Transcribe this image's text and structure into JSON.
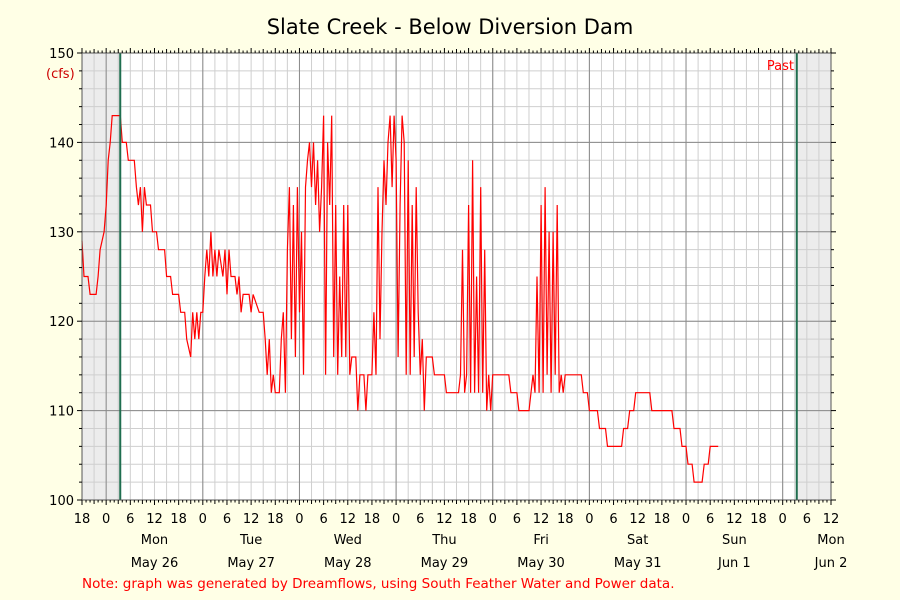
{
  "chart_data": {
    "type": "line",
    "title": "Slate Creek - Below Diversion Dam",
    "y_unit_label": "(cfs)",
    "ylim": [
      100,
      150
    ],
    "y_ticks": [
      100,
      110,
      120,
      130,
      140,
      150
    ],
    "x_range_hours": [
      "2025-05-25T18:00",
      "2025-06-02T12:00"
    ],
    "x_hour_tick_labels": [
      "18",
      "0",
      "6",
      "12",
      "18",
      "0",
      "6",
      "12",
      "18",
      "0",
      "6",
      "12",
      "18",
      "0",
      "6",
      "12",
      "18",
      "0",
      "6",
      "12",
      "18",
      "0",
      "6",
      "12",
      "18",
      "0",
      "6",
      "12",
      "18",
      "0",
      "6",
      "12"
    ],
    "day_labels": [
      {
        "weekday": "Mon",
        "date": "May 26"
      },
      {
        "weekday": "Tue",
        "date": "May 27"
      },
      {
        "weekday": "Wed",
        "date": "May 28"
      },
      {
        "weekday": "Thu",
        "date": "May 29"
      },
      {
        "weekday": "Fri",
        "date": "May 30"
      },
      {
        "weekday": "Sat",
        "date": "May 31"
      },
      {
        "weekday": "Sun",
        "date": "Jun 1"
      },
      {
        "weekday": "Mon",
        "date": "Jun 2"
      }
    ],
    "grid": true,
    "marker_lines": [
      "2025-05-26T03:30",
      "2025-06-02T03:30"
    ],
    "past_label": "Past",
    "note": "Note: graph was generated by Dreamflows, using South Feather Water and Power data.",
    "series": [
      {
        "color": "#ff0000",
        "points": [
          [
            "2025-05-25T18:00",
            129
          ],
          [
            "2025-05-25T18:30",
            125
          ],
          [
            "2025-05-25T19:30",
            125
          ],
          [
            "2025-05-25T20:00",
            123
          ],
          [
            "2025-05-25T21:30",
            123
          ],
          [
            "2025-05-25T22:00",
            125
          ],
          [
            "2025-05-25T22:30",
            128
          ],
          [
            "2025-05-25T23:30",
            130
          ],
          [
            "2025-05-26T00:00",
            133
          ],
          [
            "2025-05-26T00:30",
            138
          ],
          [
            "2025-05-26T01:00",
            140
          ],
          [
            "2025-05-26T01:30",
            143
          ],
          [
            "2025-05-26T03:30",
            143
          ],
          [
            "2025-05-26T04:00",
            140
          ],
          [
            "2025-05-26T05:00",
            140
          ],
          [
            "2025-05-26T05:30",
            138
          ],
          [
            "2025-05-26T07:00",
            138
          ],
          [
            "2025-05-26T07:30",
            135
          ],
          [
            "2025-05-26T08:00",
            133
          ],
          [
            "2025-05-26T08:30",
            135
          ],
          [
            "2025-05-26T09:00",
            130
          ],
          [
            "2025-05-26T09:30",
            135
          ],
          [
            "2025-05-26T10:00",
            133
          ],
          [
            "2025-05-26T11:00",
            133
          ],
          [
            "2025-05-26T11:30",
            130
          ],
          [
            "2025-05-26T12:30",
            130
          ],
          [
            "2025-05-26T13:00",
            128
          ],
          [
            "2025-05-26T14:30",
            128
          ],
          [
            "2025-05-26T15:00",
            125
          ],
          [
            "2025-05-26T16:00",
            125
          ],
          [
            "2025-05-26T16:30",
            123
          ],
          [
            "2025-05-26T18:00",
            123
          ],
          [
            "2025-05-26T18:30",
            121
          ],
          [
            "2025-05-26T19:30",
            121
          ],
          [
            "2025-05-26T20:00",
            118
          ],
          [
            "2025-05-26T21:00",
            116
          ],
          [
            "2025-05-26T21:30",
            121
          ],
          [
            "2025-05-26T22:00",
            118
          ],
          [
            "2025-05-26T22:30",
            121
          ],
          [
            "2025-05-26T23:00",
            118
          ],
          [
            "2025-05-26T23:30",
            121
          ],
          [
            "2025-05-27T00:00",
            121
          ],
          [
            "2025-05-27T00:30",
            125
          ],
          [
            "2025-05-27T01:00",
            128
          ],
          [
            "2025-05-27T01:30",
            125
          ],
          [
            "2025-05-27T02:00",
            130
          ],
          [
            "2025-05-27T02:30",
            125
          ],
          [
            "2025-05-27T03:00",
            128
          ],
          [
            "2025-05-27T03:30",
            125
          ],
          [
            "2025-05-27T04:00",
            128
          ],
          [
            "2025-05-27T05:00",
            125
          ],
          [
            "2025-05-27T05:30",
            128
          ],
          [
            "2025-05-27T06:00",
            123
          ],
          [
            "2025-05-27T06:30",
            128
          ],
          [
            "2025-05-27T07:00",
            125
          ],
          [
            "2025-05-27T08:00",
            125
          ],
          [
            "2025-05-27T08:30",
            123
          ],
          [
            "2025-05-27T09:00",
            125
          ],
          [
            "2025-05-27T09:30",
            121
          ],
          [
            "2025-05-27T10:00",
            123
          ],
          [
            "2025-05-27T11:30",
            123
          ],
          [
            "2025-05-27T12:00",
            121
          ],
          [
            "2025-05-27T12:30",
            123
          ],
          [
            "2025-05-27T14:00",
            121
          ],
          [
            "2025-05-27T15:00",
            121
          ],
          [
            "2025-05-27T15:30",
            118
          ],
          [
            "2025-05-27T16:00",
            114
          ],
          [
            "2025-05-27T16:30",
            118
          ],
          [
            "2025-05-27T17:00",
            112
          ],
          [
            "2025-05-27T17:30",
            114
          ],
          [
            "2025-05-27T18:00",
            112
          ],
          [
            "2025-05-27T19:00",
            112
          ],
          [
            "2025-05-27T19:30",
            118
          ],
          [
            "2025-05-27T20:00",
            121
          ],
          [
            "2025-05-27T20:30",
            112
          ],
          [
            "2025-05-27T21:00",
            128
          ],
          [
            "2025-05-27T21:30",
            135
          ],
          [
            "2025-05-27T22:00",
            118
          ],
          [
            "2025-05-27T22:30",
            133
          ],
          [
            "2025-05-27T23:00",
            116
          ],
          [
            "2025-05-27T23:30",
            135
          ],
          [
            "2025-05-28T00:00",
            121
          ],
          [
            "2025-05-28T00:30",
            130
          ],
          [
            "2025-05-28T01:00",
            114
          ],
          [
            "2025-05-28T01:30",
            135
          ],
          [
            "2025-05-28T02:00",
            138
          ],
          [
            "2025-05-28T02:30",
            140
          ],
          [
            "2025-05-28T03:00",
            135
          ],
          [
            "2025-05-28T03:30",
            140
          ],
          [
            "2025-05-28T04:00",
            133
          ],
          [
            "2025-05-28T04:30",
            138
          ],
          [
            "2025-05-28T05:00",
            130
          ],
          [
            "2025-05-28T05:30",
            135
          ],
          [
            "2025-05-28T06:00",
            143
          ],
          [
            "2025-05-28T06:30",
            114
          ],
          [
            "2025-05-28T07:00",
            140
          ],
          [
            "2025-05-28T07:30",
            133
          ],
          [
            "2025-05-28T08:00",
            143
          ],
          [
            "2025-05-28T08:30",
            116
          ],
          [
            "2025-05-28T09:00",
            133
          ],
          [
            "2025-05-28T09:30",
            114
          ],
          [
            "2025-05-28T10:00",
            125
          ],
          [
            "2025-05-28T10:30",
            116
          ],
          [
            "2025-05-28T11:00",
            133
          ],
          [
            "2025-05-28T11:30",
            116
          ],
          [
            "2025-05-28T12:00",
            133
          ],
          [
            "2025-05-28T12:30",
            114
          ],
          [
            "2025-05-28T13:00",
            116
          ],
          [
            "2025-05-28T14:00",
            116
          ],
          [
            "2025-05-28T14:30",
            110
          ],
          [
            "2025-05-28T15:00",
            114
          ],
          [
            "2025-05-28T16:00",
            114
          ],
          [
            "2025-05-28T16:30",
            110
          ],
          [
            "2025-05-28T17:00",
            114
          ],
          [
            "2025-05-28T18:00",
            114
          ],
          [
            "2025-05-28T18:30",
            121
          ],
          [
            "2025-05-28T19:00",
            114
          ],
          [
            "2025-05-28T19:30",
            135
          ],
          [
            "2025-05-28T20:00",
            118
          ],
          [
            "2025-05-28T20:30",
            130
          ],
          [
            "2025-05-28T21:00",
            138
          ],
          [
            "2025-05-28T21:30",
            133
          ],
          [
            "2025-05-28T22:00",
            140
          ],
          [
            "2025-05-28T22:30",
            143
          ],
          [
            "2025-05-28T23:00",
            135
          ],
          [
            "2025-05-28T23:30",
            143
          ],
          [
            "2025-05-29T00:00",
            138
          ],
          [
            "2025-05-29T00:30",
            116
          ],
          [
            "2025-05-29T01:00",
            133
          ],
          [
            "2025-05-29T01:30",
            143
          ],
          [
            "2025-05-29T02:00",
            140
          ],
          [
            "2025-05-29T02:30",
            114
          ],
          [
            "2025-05-29T03:00",
            138
          ],
          [
            "2025-05-29T03:30",
            114
          ],
          [
            "2025-05-29T04:00",
            133
          ],
          [
            "2025-05-29T04:30",
            116
          ],
          [
            "2025-05-29T05:00",
            135
          ],
          [
            "2025-05-29T05:30",
            121
          ],
          [
            "2025-05-29T06:00",
            114
          ],
          [
            "2025-05-29T06:30",
            118
          ],
          [
            "2025-05-29T07:00",
            110
          ],
          [
            "2025-05-29T07:30",
            116
          ],
          [
            "2025-05-29T09:00",
            116
          ],
          [
            "2025-05-29T09:30",
            114
          ],
          [
            "2025-05-29T12:00",
            114
          ],
          [
            "2025-05-29T12:30",
            112
          ],
          [
            "2025-05-29T15:30",
            112
          ],
          [
            "2025-05-29T16:00",
            114
          ],
          [
            "2025-05-29T16:30",
            128
          ],
          [
            "2025-05-29T17:00",
            112
          ],
          [
            "2025-05-29T17:30",
            114
          ],
          [
            "2025-05-29T18:00",
            133
          ],
          [
            "2025-05-29T18:30",
            112
          ],
          [
            "2025-05-29T19:00",
            138
          ],
          [
            "2025-05-29T19:30",
            112
          ],
          [
            "2025-05-29T20:00",
            125
          ],
          [
            "2025-05-29T20:30",
            112
          ],
          [
            "2025-05-29T21:00",
            135
          ],
          [
            "2025-05-29T21:30",
            112
          ],
          [
            "2025-05-29T22:00",
            128
          ],
          [
            "2025-05-29T22:30",
            110
          ],
          [
            "2025-05-29T23:00",
            114
          ],
          [
            "2025-05-29T23:30",
            110
          ],
          [
            "2025-05-30T00:00",
            114
          ],
          [
            "2025-05-30T04:00",
            114
          ],
          [
            "2025-05-30T04:30",
            112
          ],
          [
            "2025-05-30T06:00",
            112
          ],
          [
            "2025-05-30T06:30",
            110
          ],
          [
            "2025-05-30T09:00",
            110
          ],
          [
            "2025-05-30T09:30",
            112
          ],
          [
            "2025-05-30T10:00",
            114
          ],
          [
            "2025-05-30T10:30",
            112
          ],
          [
            "2025-05-30T11:00",
            125
          ],
          [
            "2025-05-30T11:30",
            112
          ],
          [
            "2025-05-30T12:00",
            133
          ],
          [
            "2025-05-30T12:30",
            112
          ],
          [
            "2025-05-30T13:00",
            135
          ],
          [
            "2025-05-30T13:30",
            114
          ],
          [
            "2025-05-30T14:00",
            130
          ],
          [
            "2025-05-30T14:30",
            112
          ],
          [
            "2025-05-30T15:00",
            130
          ],
          [
            "2025-05-30T15:30",
            114
          ],
          [
            "2025-05-30T16:00",
            133
          ],
          [
            "2025-05-30T16:30",
            112
          ],
          [
            "2025-05-30T17:00",
            114
          ],
          [
            "2025-05-30T17:30",
            112
          ],
          [
            "2025-05-30T18:00",
            114
          ],
          [
            "2025-05-30T22:00",
            114
          ],
          [
            "2025-05-30T22:30",
            112
          ],
          [
            "2025-05-30T23:30",
            112
          ],
          [
            "2025-05-31T00:00",
            110
          ],
          [
            "2025-05-31T02:00",
            110
          ],
          [
            "2025-05-31T02:30",
            108
          ],
          [
            "2025-05-31T04:00",
            108
          ],
          [
            "2025-05-31T04:30",
            106
          ],
          [
            "2025-05-31T08:00",
            106
          ],
          [
            "2025-05-31T08:30",
            108
          ],
          [
            "2025-05-31T09:30",
            108
          ],
          [
            "2025-05-31T10:00",
            110
          ],
          [
            "2025-05-31T11:00",
            110
          ],
          [
            "2025-05-31T11:30",
            112
          ],
          [
            "2025-05-31T15:00",
            112
          ],
          [
            "2025-05-31T15:30",
            110
          ],
          [
            "2025-05-31T20:30",
            110
          ],
          [
            "2025-05-31T21:00",
            108
          ],
          [
            "2025-05-31T22:30",
            108
          ],
          [
            "2025-05-31T23:00",
            106
          ],
          [
            "2025-06-01T00:00",
            106
          ],
          [
            "2025-06-01T00:30",
            104
          ],
          [
            "2025-06-01T01:30",
            104
          ],
          [
            "2025-06-01T02:00",
            102
          ],
          [
            "2025-06-01T04:00",
            102
          ],
          [
            "2025-06-01T04:30",
            104
          ],
          [
            "2025-06-01T05:30",
            104
          ],
          [
            "2025-06-01T06:00",
            106
          ],
          [
            "2025-06-01T08:00",
            106
          ]
        ]
      }
    ]
  }
}
